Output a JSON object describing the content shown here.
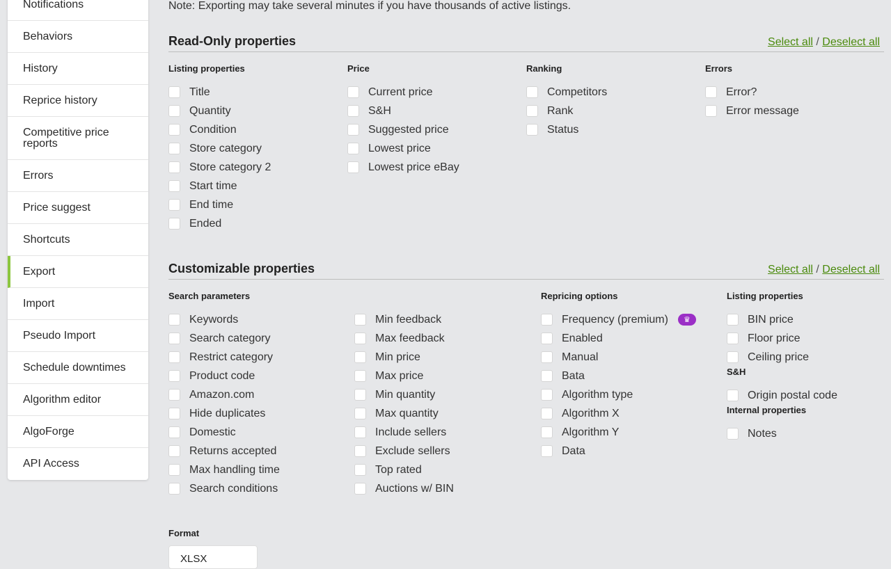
{
  "sidebar": {
    "items": [
      "Notifications",
      "Behaviors",
      "History",
      "Reprice history",
      "Competitive price reports",
      "Errors",
      "Price suggest",
      "Shortcuts",
      "Export",
      "Import",
      "Pseudo Import",
      "Schedule downtimes",
      "Algorithm editor",
      "AlgoForge",
      "API Access"
    ],
    "active": "Export"
  },
  "note": "Note: Exporting may take several minutes if you have thousands of active listings.",
  "readonly": {
    "title": "Read-Only properties",
    "select_all": "Select all",
    "sep": "/",
    "deselect_all": "Deselect all",
    "groups": [
      {
        "title": "Listing properties",
        "items": [
          "Title",
          "Quantity",
          "Condition",
          "Store category",
          "Store category 2",
          "Start time",
          "End time",
          "Ended"
        ]
      },
      {
        "title": "Price",
        "items": [
          "Current price",
          "S&H",
          "Suggested price",
          "Lowest price",
          "Lowest price eBay"
        ]
      },
      {
        "title": "Ranking",
        "items": [
          "Competitors",
          "Rank",
          "Status"
        ]
      },
      {
        "title": "Errors",
        "items": [
          "Error?",
          "Error message"
        ]
      }
    ]
  },
  "custom": {
    "title": "Customizable properties",
    "select_all": "Select all",
    "sep": "/",
    "deselect_all": "Deselect all",
    "search": {
      "title": "Search parameters",
      "col1": [
        "Keywords",
        "Search category",
        "Restrict category",
        "Product code",
        "Amazon.com",
        "Hide duplicates",
        "Domestic",
        "Returns accepted",
        "Max handling time",
        "Search conditions"
      ],
      "col2": [
        "Min feedback",
        "Max feedback",
        "Min price",
        "Max price",
        "Min quantity",
        "Max quantity",
        "Include sellers",
        "Exclude sellers",
        "Top rated",
        "Auctions w/ BIN"
      ]
    },
    "repricing": {
      "title": "Repricing options",
      "items": [
        "Frequency (premium)",
        "Enabled",
        "Manual",
        "Bata",
        "Algorithm type",
        "Algorithm X",
        "Algorithm Y",
        "Data"
      ],
      "premium_icon": "crown-icon",
      "premium_color": "#9b2fc6"
    },
    "listing": {
      "title": "Listing properties",
      "items": [
        "BIN price",
        "Floor price",
        "Ceiling price"
      ]
    },
    "sh": {
      "title": "S&H",
      "items": [
        "Origin postal code"
      ]
    },
    "internal": {
      "title": "Internal properties",
      "items": [
        "Notes"
      ]
    }
  },
  "format": {
    "label": "Format",
    "value": "XLSX"
  },
  "colors": {
    "accent": "#8cc63f",
    "link": "#4a8a0c"
  }
}
